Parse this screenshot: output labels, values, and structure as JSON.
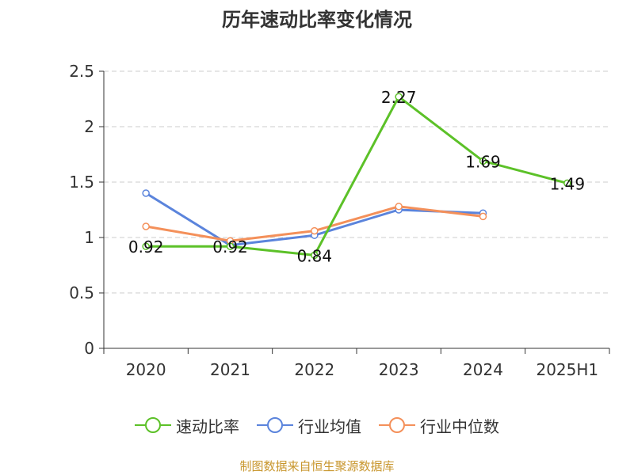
{
  "chart_data": {
    "type": "line",
    "title": "历年速动比率变化情况",
    "categories": [
      "2020",
      "2021",
      "2022",
      "2023",
      "2024",
      "2025H1"
    ],
    "y_ticks": [
      "0",
      "0.5",
      "1",
      "1.5",
      "2",
      "2.5"
    ],
    "ylim": [
      0,
      2.5
    ],
    "grid": true,
    "legend_position": "bottom",
    "series": [
      {
        "name": "速动比率",
        "color": "#5cc128",
        "values": [
          0.92,
          0.92,
          0.84,
          2.27,
          1.69,
          1.49
        ],
        "labels": [
          "0.92",
          "0.92",
          "0.84",
          "2.27",
          "1.69",
          "1.49"
        ]
      },
      {
        "name": "行业均值",
        "color": "#5b84dc",
        "values": [
          1.4,
          0.93,
          1.02,
          1.25,
          1.22,
          null
        ]
      },
      {
        "name": "行业中位数",
        "color": "#f4905a",
        "values": [
          1.1,
          0.97,
          1.06,
          1.28,
          1.19,
          null
        ]
      }
    ]
  },
  "legend": [
    "速动比率",
    "行业均值",
    "行业中位数"
  ],
  "source": "制图数据来自恒生聚源数据库"
}
